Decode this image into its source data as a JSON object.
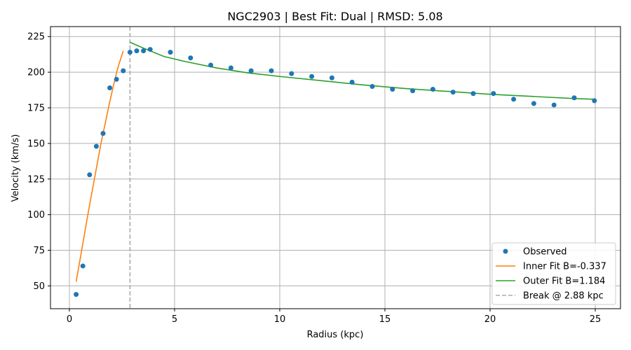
{
  "chart_data": {
    "type": "scatter",
    "title": "NGC2903 | Best Fit: Dual | RMSD: 5.08",
    "xlabel": "Radius (kpc)",
    "ylabel": "Velocity (km/s)",
    "xlim": [
      -0.9,
      26.2
    ],
    "ylim": [
      34,
      232
    ],
    "xticks": [
      0,
      5,
      10,
      15,
      20,
      25
    ],
    "yticks": [
      50,
      75,
      100,
      125,
      150,
      175,
      200,
      225
    ],
    "grid": true,
    "legend_position": "lower-right",
    "series": [
      {
        "name": "Observed",
        "kind": "points",
        "color": "#1f77b4",
        "x": [
          0.32,
          0.64,
          0.96,
          1.28,
          1.6,
          1.92,
          2.24,
          2.56,
          2.88,
          3.2,
          3.52,
          3.84,
          4.8,
          5.76,
          6.72,
          7.68,
          8.64,
          9.6,
          10.56,
          11.52,
          12.48,
          13.44,
          14.4,
          15.36,
          16.32,
          17.28,
          18.24,
          19.2,
          20.16,
          21.12,
          22.08,
          23.04,
          24.0,
          24.96
        ],
        "y": [
          44,
          64,
          128,
          148,
          157,
          189,
          195,
          201,
          214,
          215,
          215,
          216,
          214,
          210,
          205,
          203,
          201,
          201,
          199,
          197,
          196,
          193,
          190,
          188,
          187,
          188,
          186,
          185,
          185,
          181,
          178,
          177,
          182,
          180
        ]
      },
      {
        "name": "Inner Fit B=-0.337",
        "kind": "line",
        "color": "#ff7f0e",
        "x": [
          0.32,
          0.5,
          0.7,
          0.9,
          1.1,
          1.3,
          1.5,
          1.7,
          1.9,
          2.1,
          2.3,
          2.56
        ],
        "y": [
          53,
          68,
          85,
          102,
          118,
          134,
          150,
          164,
          178,
          191,
          203,
          215
        ]
      },
      {
        "name": "Outer Fit B=1.184",
        "kind": "line",
        "color": "#2ca02c",
        "x": [
          2.88,
          3.5,
          4.5,
          5.5,
          7,
          8.5,
          10,
          12,
          14,
          16,
          18,
          20,
          22,
          24,
          24.96
        ],
        "y": [
          221,
          217,
          211,
          207.5,
          203,
          199.5,
          197,
          194,
          191,
          188.5,
          186.5,
          184.5,
          183,
          181.5,
          181
        ]
      }
    ],
    "break": {
      "name": "Break @ 2.88 kpc",
      "x": 2.88,
      "color": "#aaaaaa"
    }
  }
}
